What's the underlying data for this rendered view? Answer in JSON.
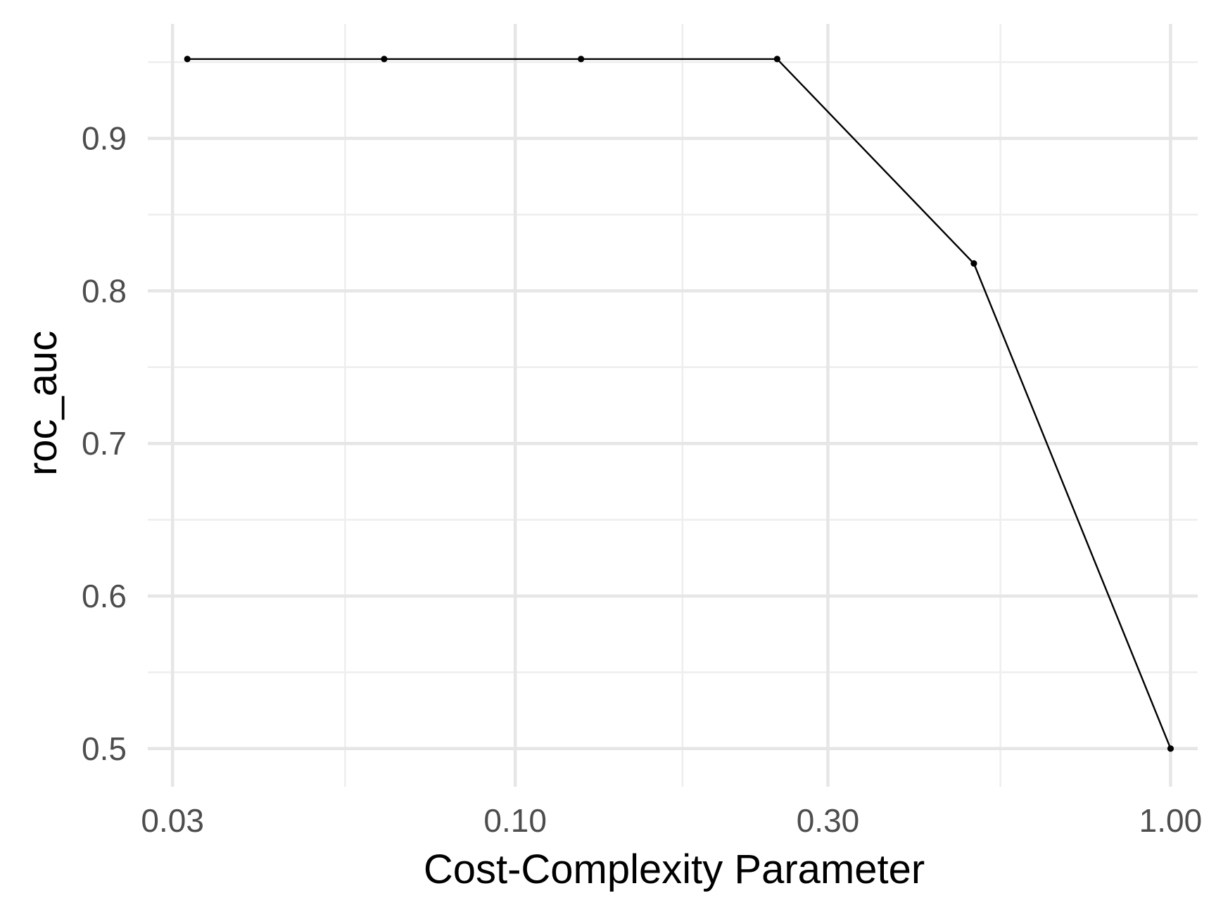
{
  "chart_data": {
    "type": "line",
    "xlabel": "Cost-Complexity Parameter",
    "ylabel": "roc_auc",
    "x_scale": "log10",
    "xlim": [
      0.0275,
      1.1
    ],
    "ylim": [
      0.475,
      0.975
    ],
    "x_ticks": [
      0.03,
      0.1,
      0.3,
      1.0
    ],
    "x_tick_labels": [
      "0.03",
      "0.10",
      "0.30",
      "1.00"
    ],
    "x_minor_ticks": [
      0.055,
      0.18,
      0.55
    ],
    "y_ticks": [
      0.5,
      0.6,
      0.7,
      0.8,
      0.9
    ],
    "y_tick_labels": [
      "0.5",
      "0.6",
      "0.7",
      "0.8",
      "0.9"
    ],
    "y_minor_ticks": [
      0.55,
      0.65,
      0.75,
      0.85,
      0.95
    ],
    "grid": true,
    "legend": "none",
    "series": [
      {
        "x": [
          0.0316,
          0.0631,
          0.126,
          0.251,
          0.501,
          1.0
        ],
        "y": [
          0.952,
          0.952,
          0.952,
          0.952,
          0.818,
          0.5
        ],
        "color": "#000000"
      }
    ]
  }
}
